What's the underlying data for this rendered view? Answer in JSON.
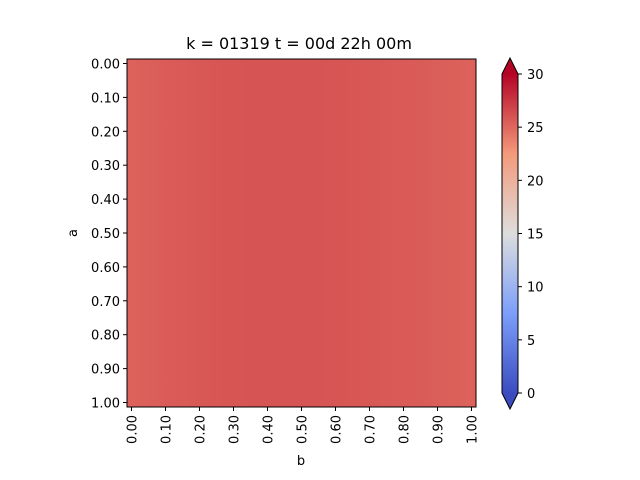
{
  "chart_data": {
    "type": "heatmap",
    "title": "k = 01319 t = 00d 22h 00m",
    "xlabel": "b",
    "ylabel": "a",
    "x_ticks": [
      "0.00",
      "0.10",
      "0.20",
      "0.30",
      "0.40",
      "0.50",
      "0.60",
      "0.70",
      "0.80",
      "0.90",
      "1.00"
    ],
    "y_ticks": [
      "0.00",
      "0.10",
      "0.20",
      "0.30",
      "0.40",
      "0.50",
      "0.60",
      "0.70",
      "0.80",
      "0.90",
      "1.00"
    ],
    "xlim": [
      0,
      1
    ],
    "ylim": [
      1,
      0
    ],
    "x_columns": [
      0.0,
      0.1,
      0.2,
      0.3,
      0.4,
      0.5,
      0.6,
      0.7,
      0.8,
      0.9,
      1.0
    ],
    "column_values": [
      25.3,
      25.6,
      25.8,
      25.9,
      26.0,
      26.0,
      25.9,
      25.8,
      25.7,
      25.5,
      25.3
    ],
    "colormap": "coolwarm",
    "colorbar": {
      "min": 0,
      "max": 30,
      "ticks": [
        "0",
        "5",
        "10",
        "15",
        "20",
        "25",
        "30"
      ],
      "extend": "both"
    },
    "grid": false
  }
}
